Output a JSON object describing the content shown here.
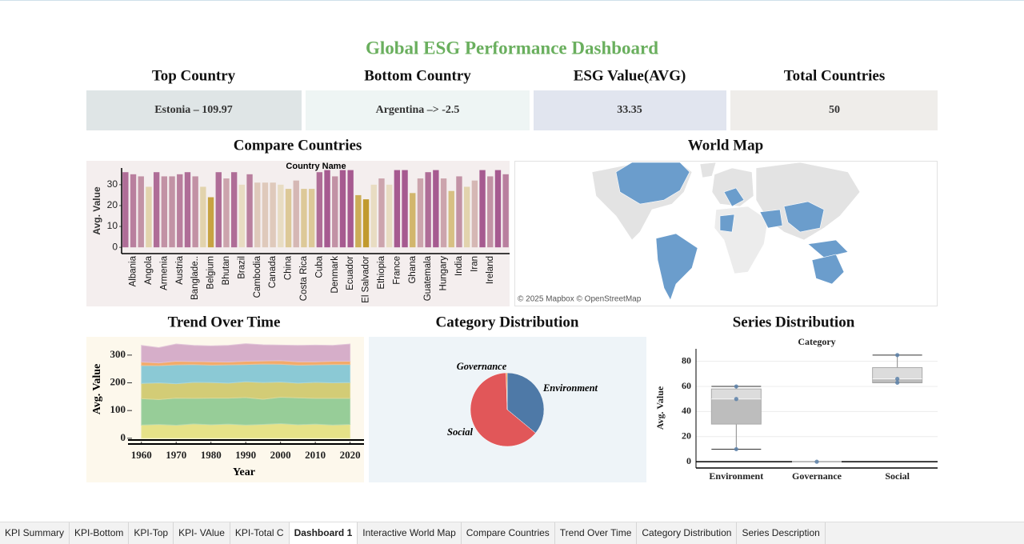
{
  "header": {
    "title": "Global ESG Performance Dashboard"
  },
  "kpis": [
    {
      "label": "Top Country",
      "value": "Estonia – 109.97"
    },
    {
      "label": "Bottom Country",
      "value": "Argentina –> -2.5"
    },
    {
      "label": "ESG Value(AVG)",
      "value": "33.35"
    },
    {
      "label": "Total Countries",
      "value": "50"
    }
  ],
  "map": {
    "title": "World Map",
    "attribution": "© 2025 Mapbox © OpenStreetMap"
  },
  "chart_data": [
    {
      "type": "bar",
      "title": "Compare Countries",
      "header": "Country Name",
      "y_label": "Avg. Value",
      "categories": [
        null,
        "Albania",
        null,
        "Angola",
        null,
        "Armenia",
        null,
        "Austria",
        null,
        "Banglade..",
        null,
        "Belgium",
        null,
        "Bhutan",
        null,
        "Brazil",
        null,
        "Cambodia",
        null,
        "Canada",
        null,
        "China",
        null,
        "Costa Rica",
        null,
        "Cuba",
        null,
        "Denmark",
        null,
        "Ecuador",
        null,
        "El Salvador",
        null,
        "Ethiopia",
        null,
        "France",
        null,
        "Ghana",
        null,
        "Guatemala",
        null,
        "Hungary",
        null,
        "India",
        null,
        "Iran",
        null,
        "Ireland",
        null,
        null
      ],
      "values": [
        36,
        35,
        34,
        29,
        36,
        34,
        34,
        35,
        36,
        34,
        29,
        24,
        36,
        33,
        36,
        30,
        35,
        31,
        31,
        31,
        30,
        28,
        32,
        28,
        28,
        36,
        37,
        34,
        37,
        37,
        25,
        23,
        30,
        33,
        30,
        37,
        37,
        26,
        33,
        36,
        37,
        33,
        27,
        34,
        29,
        32,
        37,
        34,
        37,
        35
      ],
      "ylim": [
        -3,
        38
      ],
      "yticks": [
        0,
        10,
        20,
        30
      ],
      "color_scale": [
        "#c19a2e",
        "#e8dcc2",
        "#a65a90"
      ]
    },
    {
      "type": "area",
      "title": "Trend Over Time",
      "x_label": "Year",
      "y_label": "Avg. Value",
      "stacked": true,
      "x": [
        1960,
        1965,
        1970,
        1975,
        1980,
        1985,
        1990,
        1995,
        2000,
        2005,
        2010,
        2015,
        2020
      ],
      "series": [
        {
          "color": "#e4e07e",
          "values": [
            48,
            50,
            47,
            52,
            49,
            51,
            48,
            50,
            53,
            49,
            51,
            48,
            50
          ]
        },
        {
          "color": "#8cc98f",
          "values": [
            95,
            90,
            98,
            92,
            96,
            94,
            99,
            91,
            95,
            97,
            93,
            96,
            94
          ]
        },
        {
          "color": "#cfc86a",
          "values": [
            55,
            60,
            52,
            58,
            56,
            54,
            57,
            60,
            55,
            53,
            58,
            56,
            57
          ]
        },
        {
          "color": "#7fc5d3",
          "values": [
            65,
            62,
            68,
            64,
            63,
            66,
            62,
            67,
            64,
            65,
            63,
            66,
            65
          ]
        },
        {
          "color": "#f2a25a",
          "values": [
            12,
            10,
            13,
            11,
            12,
            10,
            12,
            11,
            13,
            12,
            11,
            12,
            12
          ]
        },
        {
          "color": "#d2a6c6",
          "values": [
            60,
            55,
            62,
            58,
            57,
            60,
            63,
            58,
            56,
            59,
            60,
            57,
            62
          ]
        }
      ],
      "xlim": [
        1955,
        2024
      ],
      "xticks": [
        1960,
        1970,
        1980,
        1990,
        2000,
        2010,
        2020
      ],
      "ylim": [
        -12,
        366
      ],
      "yticks": [
        0,
        100,
        200,
        300
      ]
    },
    {
      "type": "pie",
      "title": "Category Distribution",
      "categories": [
        "Environment",
        "Social",
        "Governance"
      ],
      "values": [
        36,
        63.5,
        0.5
      ],
      "colors": [
        "#4e79a7",
        "#e15759",
        "#f28e2b"
      ]
    },
    {
      "type": "box",
      "title": "Series Distribution",
      "header": "Category",
      "y_label": "Avg. Value",
      "categories": [
        "Environment",
        "Governance",
        "Social"
      ],
      "boxes": [
        {
          "min": 10,
          "q1": 30,
          "median": 50,
          "q3": 58,
          "max": 60,
          "points": [
            60,
            50,
            10
          ]
        },
        {
          "min": 0,
          "q1": 0,
          "median": 0,
          "q3": 0,
          "max": 0,
          "points": [
            0
          ]
        },
        {
          "min": 63,
          "q1": 63,
          "median": 66,
          "q3": 75,
          "max": 85,
          "points": [
            85,
            66,
            63
          ]
        }
      ],
      "ylim": [
        -5,
        90
      ],
      "yticks": [
        0,
        20,
        40,
        60,
        80
      ],
      "grid": true
    }
  ],
  "tabs": [
    "KPI Summary",
    "KPI-Bottom",
    "KPI-Top",
    "KPI- VAlue",
    "KPI-Total C",
    "Dashboard 1",
    "Interactive World Map",
    "Compare Countries",
    "Trend Over Time",
    "Category Distribution",
    "Series Description"
  ],
  "active_tab": 5
}
